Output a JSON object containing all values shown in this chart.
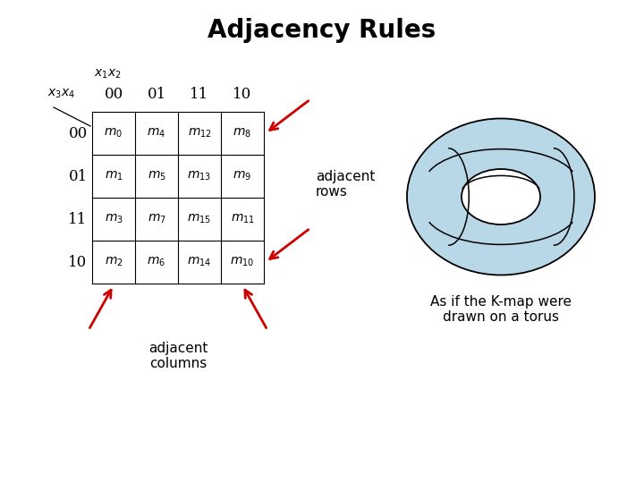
{
  "title": "Adjacency Rules",
  "title_fontsize": 20,
  "background_color": "#ffffff",
  "kmap": {
    "col_headers": [
      "00",
      "01",
      "11",
      "10"
    ],
    "row_headers": [
      "00",
      "01",
      "11",
      "10"
    ],
    "cells": [
      [
        "m_0",
        "m_4",
        "m_{12}",
        "m_8"
      ],
      [
        "m_1",
        "m_5",
        "m_{13}",
        "m_9"
      ],
      [
        "m_3",
        "m_7",
        "m_{15}",
        "m_{11}"
      ],
      [
        "m_2",
        "m_6",
        "m_{14}",
        "m_{10}"
      ]
    ],
    "x_label": "x_1x_2",
    "y_label": "x_3x_4"
  },
  "arrow_color": "#cc0000",
  "torus_color": "#b8d8e8",
  "torus_outline": "#000000",
  "adjacent_rows_label": "adjacent\nrows",
  "adjacent_columns_label": "adjacent\ncolumns",
  "torus_text": "As if the K-map were\ndrawn on a torus"
}
